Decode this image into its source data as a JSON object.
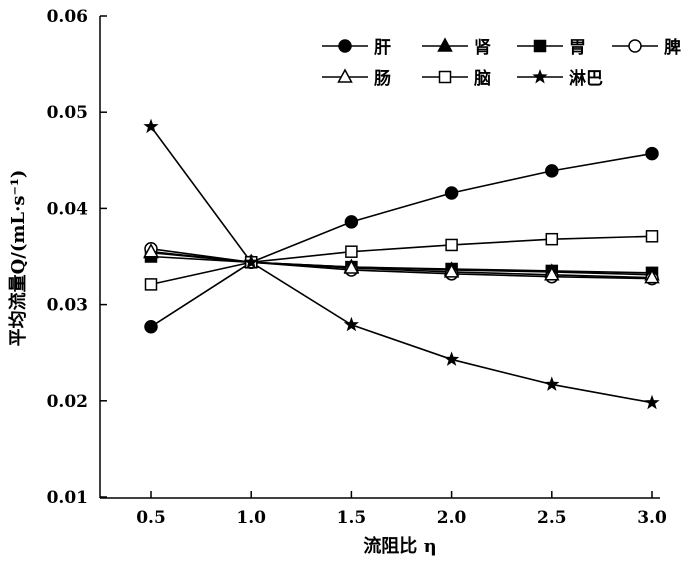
{
  "chart_data": {
    "type": "line",
    "title": "",
    "xlabel": "流阻比 η",
    "ylabel": "平均流量Q/(mL·s⁻¹)",
    "x": [
      0.5,
      1.0,
      1.5,
      2.0,
      2.5,
      3.0
    ],
    "xticks": [
      "0.5",
      "1.0",
      "1.5",
      "2.0",
      "2.5",
      "3.0"
    ],
    "yticks": [
      "0.01",
      "0.02",
      "0.03",
      "0.04",
      "0.05",
      "0.06"
    ],
    "xlim": [
      0.25,
      3.0
    ],
    "ylim": [
      0.01,
      0.06
    ],
    "legend_position": "top-right",
    "grid": false,
    "series": [
      {
        "name": "肝",
        "marker": "circle-filled",
        "values": [
          0.0277,
          0.0344,
          0.0386,
          0.0416,
          0.0439,
          0.0457
        ]
      },
      {
        "name": "肾",
        "marker": "triangle-filled",
        "values": [
          0.0354,
          0.0344,
          0.0339,
          0.0336,
          0.0334,
          0.0331
        ]
      },
      {
        "name": "胃",
        "marker": "square-filled",
        "values": [
          0.035,
          0.0344,
          0.0339,
          0.0337,
          0.0335,
          0.0333
        ]
      },
      {
        "name": "脾",
        "marker": "circle-open",
        "values": [
          0.0358,
          0.0344,
          0.0336,
          0.0332,
          0.0329,
          0.0327
        ]
      },
      {
        "name": "肠",
        "marker": "triangle-open",
        "values": [
          0.0355,
          0.0344,
          0.0338,
          0.0334,
          0.0331,
          0.0328
        ]
      },
      {
        "name": "脑",
        "marker": "square-open",
        "values": [
          0.0321,
          0.0344,
          0.0355,
          0.0362,
          0.0368,
          0.0371
        ]
      },
      {
        "name": "淋巴",
        "marker": "star",
        "values": [
          0.0485,
          0.0344,
          0.0279,
          0.0243,
          0.0217,
          0.0198
        ]
      }
    ]
  }
}
